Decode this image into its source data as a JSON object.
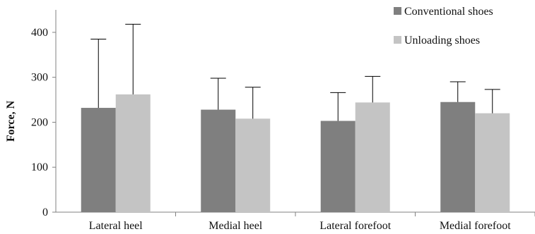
{
  "chart_data": {
    "type": "bar",
    "ylabel": "Force, N",
    "xlabel": "",
    "ylim": [
      0,
      450
    ],
    "yticks": [
      0,
      100,
      200,
      300,
      400
    ],
    "categories": [
      "Lateral heel",
      "Medial heel",
      "Lateral forefoot",
      "Medial forefoot"
    ],
    "series": [
      {
        "name": "Conventional shoes",
        "color": "#7f7f7f",
        "values": [
          232,
          228,
          203,
          245
        ],
        "error_upper": [
          385,
          298,
          266,
          290
        ]
      },
      {
        "name": "Unloading shoes",
        "color": "#c4c4c4",
        "values": [
          262,
          208,
          244,
          220
        ],
        "error_upper": [
          418,
          278,
          302,
          273
        ]
      }
    ],
    "grid": false,
    "legend_position": "top-right",
    "error_bars": "upper only"
  }
}
